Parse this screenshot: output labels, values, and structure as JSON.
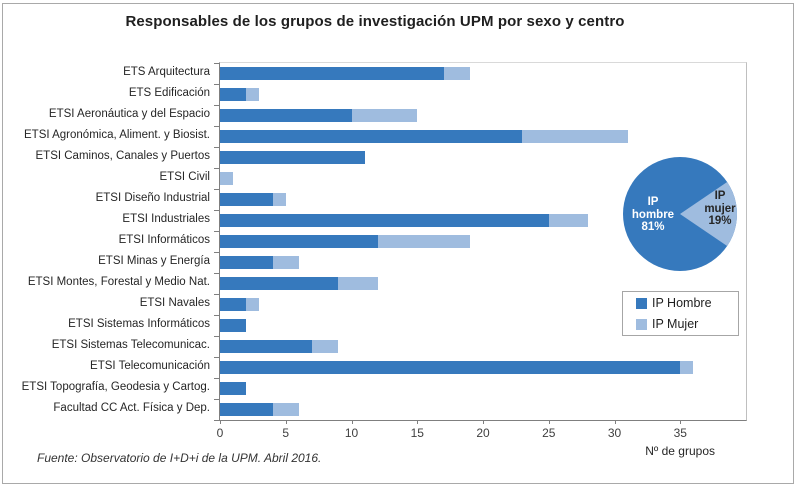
{
  "title": "Responsables de los grupos de investigación UPM por sexo y centro",
  "source_note": "Fuente: Observatorio de I+D+i de la UPM. Abril 2016.",
  "colors": {
    "hombre": "#3679bd",
    "mujer": "#9fbcdf",
    "axis": "#7f7f7f"
  },
  "legend": {
    "items": [
      {
        "label": "IP Hombre",
        "color_key": "hombre"
      },
      {
        "label": "IP Mujer",
        "color_key": "mujer"
      }
    ]
  },
  "chart_data": [
    {
      "type": "bar",
      "orientation": "horizontal",
      "stacked": true,
      "title": "Responsables de los grupos de investigación UPM por sexo y centro",
      "categories": [
        "ETS Arquitectura",
        "ETS Edificación",
        "ETSI Aeronáutica y del Espacio",
        "ETSI Agronómica, Aliment. y Biosist.",
        "ETSI Caminos, Canales y Puertos",
        "ETSI Civil",
        "ETSI Diseño Industrial",
        "ETSI Industriales",
        "ETSI Informáticos",
        "ETSI Minas y Energía",
        "ETSI Montes, Forestal y Medio Nat.",
        "ETSI Navales",
        "ETSI Sistemas Informáticos",
        "ETSI Sistemas Telecomunicac.",
        "ETSI Telecomunicación",
        "ETSI Topografía, Geodesia y Cartog.",
        "Facultad CC Act. Física y Dep."
      ],
      "series": [
        {
          "name": "IP Hombre",
          "color_key": "hombre",
          "values": [
            17,
            2,
            10,
            23,
            11,
            0,
            4,
            25,
            12,
            4,
            9,
            2,
            2,
            7,
            35,
            2,
            4
          ]
        },
        {
          "name": "IP Mujer",
          "color_key": "mujer",
          "values": [
            2,
            1,
            5,
            8,
            0,
            1,
            1,
            3,
            7,
            2,
            3,
            1,
            0,
            2,
            1,
            0,
            2
          ]
        }
      ],
      "xlabel": "Nº de grupos",
      "xlim": [
        0,
        40
      ],
      "xticks": [
        0,
        5,
        10,
        15,
        20,
        25,
        30,
        35
      ],
      "grid": false,
      "legend_position": "middle-right"
    },
    {
      "type": "pie",
      "labels": [
        "IP hombre",
        "IP mujer"
      ],
      "values": [
        81,
        19
      ],
      "unit": "%",
      "slice_labels": [
        "IP\nhombre\n81%",
        "IP\nmujer\n19%"
      ],
      "color_keys": [
        "hombre",
        "mujer"
      ],
      "mujer_slice_center_deg": 0
    }
  ]
}
